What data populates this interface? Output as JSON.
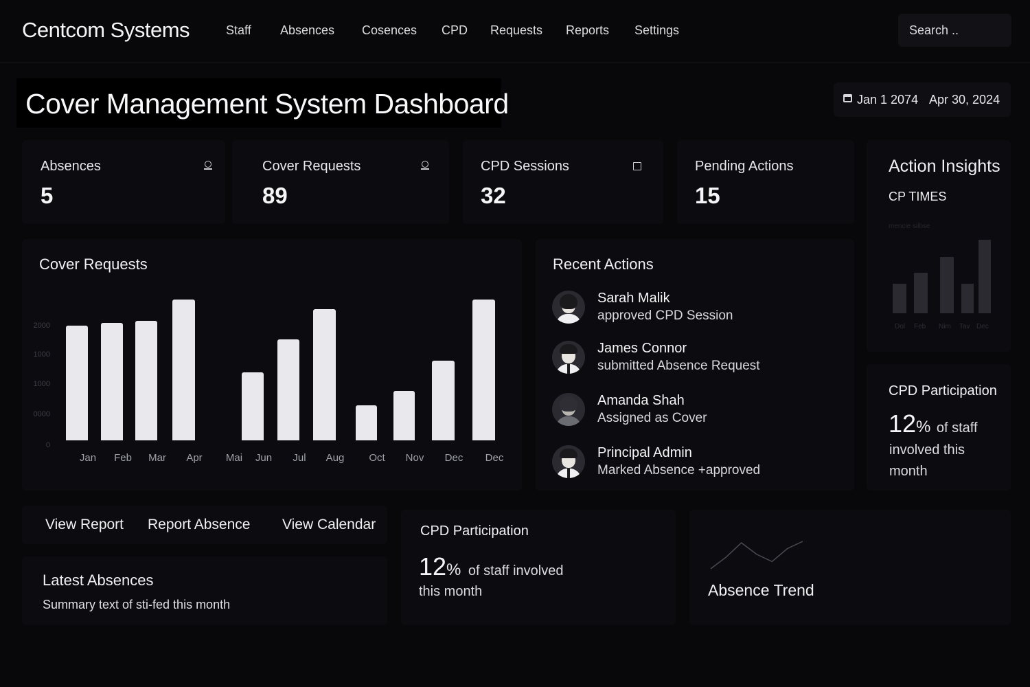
{
  "header": {
    "brand": "Centcom Systems",
    "nav": [
      "Staff",
      "Absences",
      "Cosences",
      "CPD",
      "Requests",
      "Reports",
      "Settings"
    ],
    "search_placeholder": "Search .."
  },
  "page": {
    "title": "Cover Management System Dashboard",
    "date_start": "Jan 1 2074",
    "date_end": "Apr 30, 2024"
  },
  "stats": [
    {
      "label": "Absences",
      "value": "5",
      "icon": "user-icon"
    },
    {
      "label": "Cover Requests",
      "value": "89",
      "icon": "user-icon"
    },
    {
      "label": "CPD Sessions",
      "value": "32",
      "icon": "square-icon"
    },
    {
      "label": "Pending Actions",
      "value": "15",
      "icon": ""
    }
  ],
  "insights": {
    "title": "Action Insights",
    "subtitle": "CP TIMES",
    "faint_caption": "mencie siibse",
    "mini_ticks": [
      "Dol",
      "Feb",
      "Nim",
      "Tav",
      "Dec"
    ]
  },
  "cover_requests_title": "Cover Requests",
  "chart_data": {
    "type": "bar",
    "title": "Cover Requests",
    "categories": [
      "Jan",
      "Feb",
      "Mar",
      "Apr",
      "Mai",
      "Jun",
      "Jul",
      "Aug",
      "Oct",
      "Nov",
      "Dec",
      "Dec"
    ],
    "values": [
      2450,
      2500,
      2550,
      3000,
      0,
      1450,
      2150,
      2800,
      750,
      1050,
      1700,
      3000
    ],
    "ytick_labels": [
      "0",
      "0000",
      "1000",
      "1000",
      "2000"
    ],
    "ylim": [
      0,
      3000
    ],
    "grid": false
  },
  "recent_actions": {
    "title": "Recent Actions",
    "items": [
      {
        "name": "Sarah Malik",
        "desc": "approved CPD Session",
        "avatar": "female"
      },
      {
        "name": "James Connor",
        "desc": "submitted Absence Request",
        "avatar": "male"
      },
      {
        "name": "Amanda Shah",
        "desc": "Assigned as Cover",
        "avatar": "female"
      },
      {
        "name": "Principal Admin",
        "desc": "Marked Absence +approved",
        "avatar": "male"
      }
    ]
  },
  "cpd_side": {
    "title": "CPD Participation",
    "pct": "12",
    "pct_sign": "%",
    "line1": "of staff",
    "line2": "involved this",
    "line3": "month"
  },
  "buttons": [
    "View Report",
    "Report Absence",
    "View Calendar"
  ],
  "latest_absences": {
    "title": "Latest Absences",
    "summary": "Summary text of sti-fed this month"
  },
  "cpd_bottom": {
    "title": "CPD Participation",
    "pct": "12",
    "pct_sign": "%",
    "line1": "of staff involved",
    "line2": "this month"
  },
  "absence_trend": {
    "title": "Absence Trend",
    "trend": [
      0.05,
      0.45,
      0.95,
      0.55,
      0.3,
      0.75,
      1.0
    ]
  },
  "colors": {
    "background": "#08080b",
    "card": "#0c0c10",
    "bar": "#e9e9ed",
    "text": "#ececef"
  }
}
